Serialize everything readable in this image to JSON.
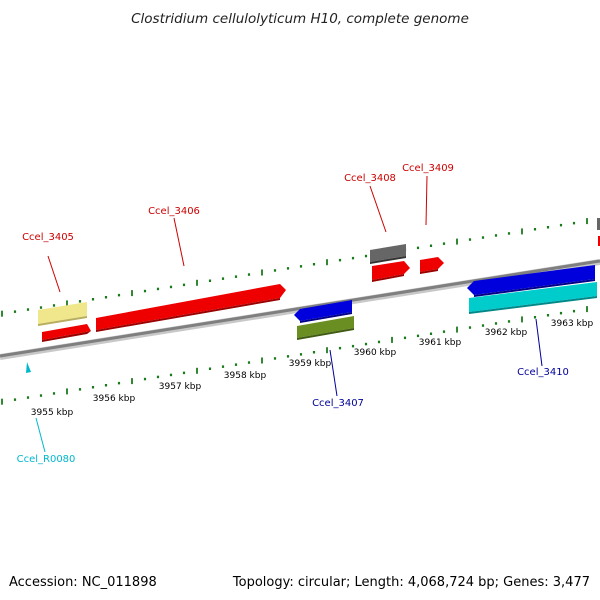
{
  "title": "Clostridium cellulolyticum H10, complete genome",
  "footer": {
    "accession": "Accession: NC_011898",
    "summary": "Topology: circular; Length: 4,068,724 bp; Genes: 3,477"
  },
  "colors": {
    "axis": "#8a8a8a",
    "tick": "#1c7a1c",
    "forward_label": "#cc0000",
    "reverse_label": "#000099",
    "rna_label": "#00b8cc",
    "cds_red": "#ee0000",
    "cds_blue": "#0000dd",
    "cds_cyan": "#00cccc",
    "cds_olive": "#6b8e23",
    "cds_gray": "#666666",
    "cds_pale": "#f0e68c"
  },
  "chart_data": {
    "type": "genome-map",
    "axis_unit": "kbp",
    "tick_labels": [
      {
        "kbp": 3955,
        "label": "3955 kbp"
      },
      {
        "kbp": 3956,
        "label": "3956 kbp"
      },
      {
        "kbp": 3957,
        "label": "3957 kbp"
      },
      {
        "kbp": 3958,
        "label": "3958 kbp"
      },
      {
        "kbp": 3959,
        "label": "3959 kbp"
      },
      {
        "kbp": 3960,
        "label": "3960 kbp"
      },
      {
        "kbp": 3961,
        "label": "3961 kbp"
      },
      {
        "kbp": 3962,
        "label": "3962 kbp"
      },
      {
        "kbp": 3963,
        "label": "3963 kbp"
      }
    ],
    "labels": [
      {
        "name": "Ccel_3405",
        "strand": "+",
        "color": "#cc0000"
      },
      {
        "name": "Ccel_3406",
        "strand": "+",
        "color": "#cc0000"
      },
      {
        "name": "Ccel_3408",
        "strand": "+",
        "color": "#cc0000"
      },
      {
        "name": "Ccel_3409",
        "strand": "+",
        "color": "#cc0000"
      },
      {
        "name": "Ccel_3407",
        "strand": "-",
        "color": "#000099"
      },
      {
        "name": "Ccel_3410",
        "strand": "-",
        "color": "#000099"
      },
      {
        "name": "Ccel_R0080",
        "strand": "-",
        "color": "#00b8cc"
      }
    ],
    "features": [
      {
        "type": "cds",
        "strand": "+",
        "color": "#ee0000",
        "start_kbp": 3955.2,
        "end_kbp": 3955.5
      },
      {
        "type": "cds",
        "strand": "+",
        "color": "#f0e68c",
        "start_kbp": 3955.2,
        "end_kbp": 3955.5
      },
      {
        "type": "cds",
        "strand": "+",
        "color": "#ee0000",
        "start_kbp": 3955.6,
        "end_kbp": 3958.9
      },
      {
        "type": "cds",
        "strand": "+",
        "color": "#666666",
        "start_kbp": 3960.3,
        "end_kbp": 3960.6
      },
      {
        "type": "cds",
        "strand": "+",
        "color": "#ee0000",
        "start_kbp": 3960.3,
        "end_kbp": 3960.6
      },
      {
        "type": "cds",
        "strand": "+",
        "color": "#ee0000",
        "start_kbp": 3960.9,
        "end_kbp": 3961.1
      },
      {
        "type": "cds",
        "strand": "-",
        "color": "#0000dd",
        "start_kbp": 3959.0,
        "end_kbp": 3959.6
      },
      {
        "type": "cds",
        "strand": "-",
        "color": "#6b8e23",
        "start_kbp": 3959.0,
        "end_kbp": 3959.6
      },
      {
        "type": "cds",
        "strand": "-",
        "color": "#0000dd",
        "start_kbp": 3961.6,
        "end_kbp": 3963.5
      },
      {
        "type": "cds",
        "strand": "-",
        "color": "#00cccc",
        "start_kbp": 3961.6,
        "end_kbp": 3963.5
      },
      {
        "type": "rna",
        "strand": "-",
        "color": "#00b8cc",
        "start_kbp": 3954.9,
        "end_kbp": 3954.95
      }
    ]
  }
}
